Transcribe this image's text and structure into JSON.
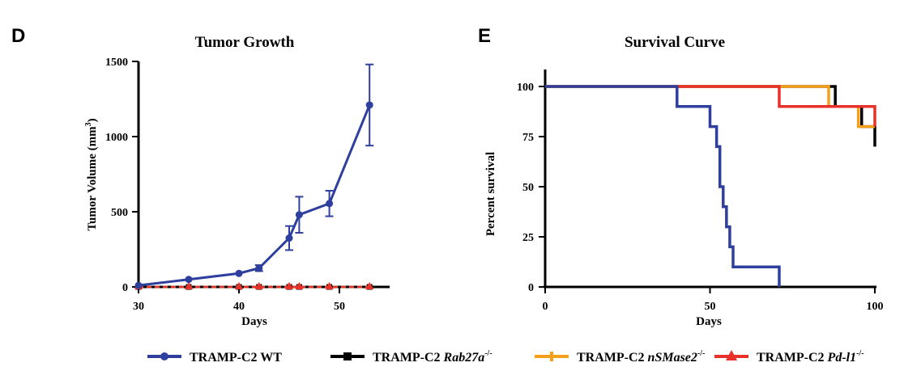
{
  "figure": {
    "panel_d_letter": "D",
    "panel_e_letter": "E"
  },
  "colors": {
    "wt": "#2e3f9e",
    "rab27a": "#000000",
    "nsmase2": "#f5a01a",
    "pdl1": "#e8312a"
  },
  "legend": {
    "items": [
      {
        "key": "wt",
        "prefix": "TRAMP-C2 ",
        "gene": "",
        "sup": "",
        "plain_suffix": "WT"
      },
      {
        "key": "rab27a",
        "prefix": "TRAMP-C2 ",
        "gene": "Rab27a",
        "sup": "-/-",
        "plain_suffix": ""
      },
      {
        "key": "nsmase2",
        "prefix": "TRAMP-C2 ",
        "gene": "nSMase2",
        "sup": "-/-",
        "plain_suffix": ""
      },
      {
        "key": "pdl1",
        "prefix": "TRAMP-C2 ",
        "gene": "Pd-l1",
        "sup": "-/-",
        "plain_suffix": ""
      }
    ]
  },
  "chart_data": [
    {
      "type": "line",
      "title": "Tumor Growth",
      "xlabel": "Days",
      "ylabel": "Tumor Volume (mm",
      "ylabel_sup": "3",
      "ylabel_end": ")",
      "xlim": [
        30,
        55
      ],
      "ylim": [
        0,
        1500
      ],
      "xticks": [
        30,
        40,
        50
      ],
      "yticks": [
        0,
        500,
        1000,
        1500
      ],
      "series": [
        {
          "key": "wt",
          "marker": "circle",
          "x": [
            30,
            35,
            40,
            42,
            45,
            46,
            49,
            53
          ],
          "y": [
            10,
            50,
            90,
            125,
            325,
            480,
            555,
            1210
          ],
          "err": [
            0,
            0,
            0,
            20,
            80,
            120,
            85,
            270
          ]
        },
        {
          "key": "rab27a",
          "marker": "square",
          "x": [
            30,
            35,
            40,
            42,
            45,
            46,
            49,
            53
          ],
          "y": [
            0,
            0,
            0,
            0,
            0,
            0,
            0,
            0
          ]
        },
        {
          "key": "nsmase2",
          "marker": "triangle",
          "x": [
            30,
            35,
            40,
            42,
            45,
            46,
            49,
            53
          ],
          "y": [
            0,
            0,
            0,
            0,
            0,
            0,
            0,
            0
          ]
        },
        {
          "key": "pdl1",
          "marker": "triangle",
          "x": [
            30,
            35,
            40,
            42,
            45,
            46,
            49,
            53
          ],
          "y": [
            0,
            0,
            0,
            0,
            0,
            0,
            0,
            0
          ]
        }
      ]
    },
    {
      "type": "line",
      "step": true,
      "title": "Survival Curve",
      "xlabel": "Days",
      "ylabel": "Percent survival",
      "xlim": [
        0,
        100
      ],
      "ylim": [
        0,
        100
      ],
      "xticks": [
        0,
        50,
        100
      ],
      "yticks": [
        0,
        25,
        50,
        75,
        100
      ],
      "series": [
        {
          "key": "wt",
          "x": [
            0,
            40,
            40,
            50,
            50,
            52,
            52,
            53,
            53,
            54,
            54,
            55,
            55,
            56,
            56,
            57,
            57,
            59,
            59,
            71,
            71
          ],
          "y": [
            100,
            100,
            90,
            90,
            80,
            80,
            70,
            70,
            50,
            50,
            40,
            40,
            30,
            30,
            20,
            20,
            10,
            10,
            10,
            10,
            0
          ]
        },
        {
          "key": "rab27a",
          "x": [
            0,
            88,
            88,
            96,
            96,
            100,
            100
          ],
          "y": [
            100,
            100,
            90,
            90,
            80,
            80,
            70
          ]
        },
        {
          "key": "nsmase2",
          "x": [
            0,
            86,
            86,
            95,
            95,
            100
          ],
          "y": [
            100,
            100,
            90,
            90,
            80,
            80
          ]
        },
        {
          "key": "pdl1",
          "x": [
            0,
            71,
            71,
            100,
            100
          ],
          "y": [
            100,
            100,
            90,
            90,
            80
          ]
        }
      ]
    }
  ]
}
